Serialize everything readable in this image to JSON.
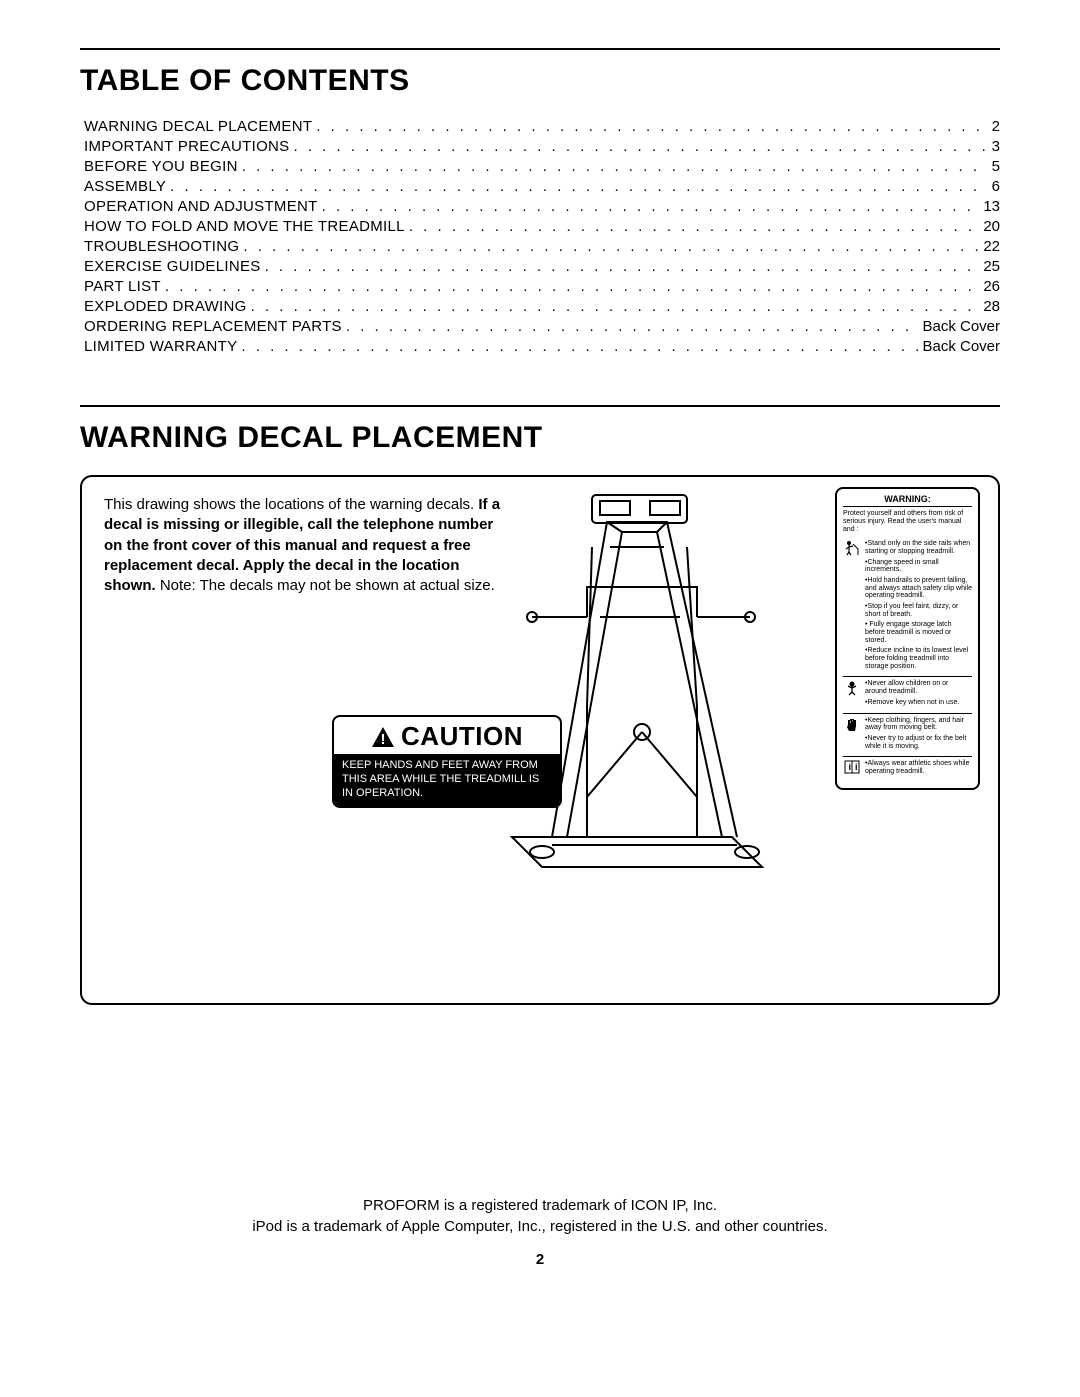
{
  "headings": {
    "toc": "TABLE OF CONTENTS",
    "decal": "WARNING DECAL PLACEMENT"
  },
  "toc": [
    {
      "label": "WARNING DECAL PLACEMENT",
      "page": "2"
    },
    {
      "label": "IMPORTANT PRECAUTIONS",
      "page": "3"
    },
    {
      "label": "BEFORE YOU BEGIN",
      "page": "5"
    },
    {
      "label": "ASSEMBLY",
      "page": "6"
    },
    {
      "label": "OPERATION AND ADJUSTMENT",
      "page": "13"
    },
    {
      "label": "HOW TO FOLD AND MOVE THE TREADMILL",
      "page": "20"
    },
    {
      "label": "TROUBLESHOOTING",
      "page": "22"
    },
    {
      "label": "EXERCISE GUIDELINES",
      "page": "25"
    },
    {
      "label": "PART LIST",
      "page": "26"
    },
    {
      "label": "EXPLODED DRAWING",
      "page": "28"
    },
    {
      "label": "ORDERING REPLACEMENT PARTS",
      "page": "Back Cover"
    },
    {
      "label": "LIMITED WARRANTY",
      "page": "Back Cover"
    }
  ],
  "intro": {
    "lead": "This drawing shows the locations of the warning decals. ",
    "bold": "If a decal is missing or illegible, call the telephone number on the front cover of this manual and request a free replacement decal. Apply the decal in the location shown.",
    "tail": " Note: The decals may not be shown at actual size."
  },
  "caution": {
    "title": "CAUTION",
    "body": "KEEP HANDS AND FEET AWAY FROM THIS AREA WHILE THE TREADMILL IS IN OPERATION."
  },
  "warning_panel": {
    "title": "WARNING:",
    "lead": "Protect yourself and others from risk of serious injury. Read the user's manual and :",
    "clusters": [
      {
        "icon": "standing-icon",
        "items": [
          "•Stand only on the side rails when starting or stopping treadmill.",
          "•Change speed in small increments.",
          "•Hold handrails to prevent falling, and always attach safety clip while operating treadmill.",
          "•Stop if you feel faint, dizzy, or short of breath.",
          "• Fully engage storage latch before treadmill is moved or stored.",
          "•Reduce incline to its lowest level before folding treadmill into storage position."
        ]
      },
      {
        "icon": "child-icon",
        "items": [
          "•Never allow children on or around treadmill.",
          "•Remove key when not in use."
        ]
      },
      {
        "icon": "hand-icon",
        "items": [
          "•Keep clothing, fingers, and hair away from moving belt.",
          "•Never try to adjust or fix the belt while it is moving."
        ]
      },
      {
        "icon": "manual-icon",
        "items": [
          "•Always wear athletic shoes while operating treadmill."
        ]
      }
    ]
  },
  "footer": {
    "line1": "PROFORM is a registered trademark of ICON IP, Inc.",
    "line2": "iPod is a trademark of Apple Computer, Inc., registered in the U.S. and other countries."
  },
  "page_number": "2",
  "style": {
    "rule_color": "#000000",
    "background": "#ffffff",
    "heading_fontsize": 30,
    "toc_fontsize": 15,
    "body_fontsize": 15,
    "caution_title_fontsize": 26,
    "caution_body_fontsize": 11,
    "warning_fontsize": 7,
    "dot_leader_spacing": 3
  }
}
